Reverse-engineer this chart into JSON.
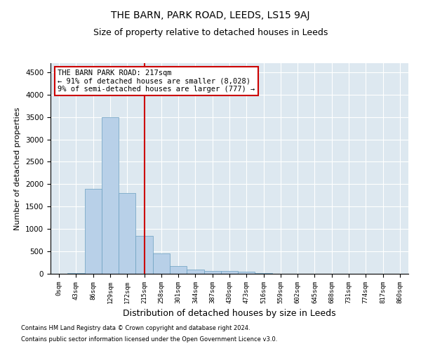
{
  "title": "THE BARN, PARK ROAD, LEEDS, LS15 9AJ",
  "subtitle": "Size of property relative to detached houses in Leeds",
  "xlabel": "Distribution of detached houses by size in Leeds",
  "ylabel": "Number of detached properties",
  "footnote1": "Contains HM Land Registry data © Crown copyright and database right 2024.",
  "footnote2": "Contains public sector information licensed under the Open Government Licence v3.0.",
  "bin_labels": [
    "0sqm",
    "43sqm",
    "86sqm",
    "129sqm",
    "172sqm",
    "215sqm",
    "258sqm",
    "301sqm",
    "344sqm",
    "387sqm",
    "430sqm",
    "473sqm",
    "516sqm",
    "559sqm",
    "602sqm",
    "645sqm",
    "688sqm",
    "731sqm",
    "774sqm",
    "817sqm",
    "860sqm"
  ],
  "bar_values": [
    5,
    10,
    1900,
    3500,
    1800,
    850,
    450,
    170,
    90,
    65,
    55,
    50,
    10,
    5,
    3,
    2,
    1,
    1,
    0,
    0,
    0
  ],
  "bar_color": "#b8d0e8",
  "bar_edge_color": "#6a9fc0",
  "vline_x": 5,
  "vline_color": "#cc0000",
  "annotation_line1": "THE BARN PARK ROAD: 217sqm",
  "annotation_line2": "← 91% of detached houses are smaller (8,028)",
  "annotation_line3": "9% of semi-detached houses are larger (777) →",
  "annotation_box_color": "#cc0000",
  "annotation_text_fontsize": 7.5,
  "ylim": [
    0,
    4700
  ],
  "yticks": [
    0,
    500,
    1000,
    1500,
    2000,
    2500,
    3000,
    3500,
    4000,
    4500
  ],
  "background_color": "#dde8f0",
  "title_fontsize": 10,
  "subtitle_fontsize": 9,
  "xlabel_fontsize": 9,
  "ylabel_fontsize": 8
}
